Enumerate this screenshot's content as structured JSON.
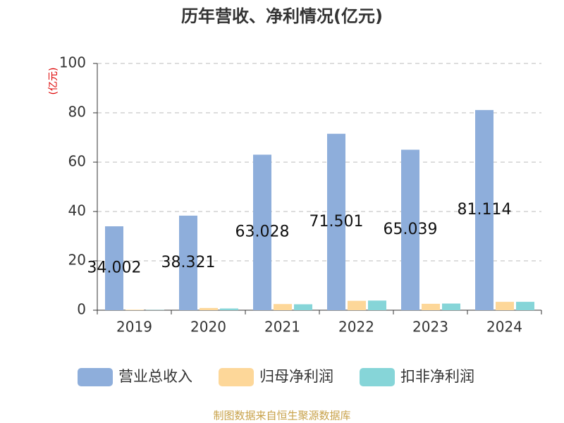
{
  "chart_data": {
    "type": "bar",
    "title": "历年营收、净利情况(亿元)",
    "y_label": "(亿元)",
    "source": "制图数据来自恒生聚源数据库",
    "categories": [
      "2019",
      "2020",
      "2021",
      "2022",
      "2023",
      "2024"
    ],
    "series": [
      {
        "name": "营业总收入",
        "color": "#8eaedb",
        "values": [
          34.002,
          38.321,
          63.028,
          71.501,
          65.039,
          81.114
        ],
        "show_labels": true
      },
      {
        "name": "归母净利润",
        "color": "#fdd799",
        "values": [
          0.2,
          0.9,
          2.5,
          3.8,
          2.6,
          3.4
        ]
      },
      {
        "name": "扣非净利润",
        "color": "#86d5d8",
        "values": [
          0.1,
          0.7,
          2.4,
          3.9,
          2.7,
          3.4
        ]
      }
    ],
    "ylim": [
      0,
      100
    ],
    "yticks": [
      0,
      20,
      40,
      60,
      80,
      100
    ],
    "grid": true
  }
}
